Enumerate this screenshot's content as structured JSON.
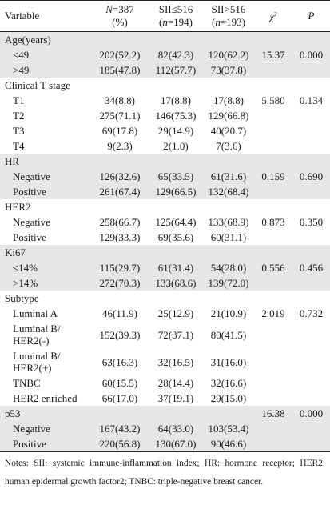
{
  "header": {
    "variable": "Variable",
    "n_total_italic": "N",
    "n_total_rest": "=387",
    "n_total_pct": "(%)",
    "sii_low": "SII≤516",
    "sii_low_n_italic": "n",
    "sii_low_n_rest": "=194)",
    "sii_high": "SII>516",
    "sii_high_n_italic": "n",
    "sii_high_n_rest": "=193)",
    "chi": "χ",
    "chi_sup": "2",
    "p": "P"
  },
  "groups": [
    {
      "label": "Age(years)",
      "shaded": true,
      "rows": [
        {
          "label": "≤49",
          "total": "202(52.2)",
          "low": "82(42.3)",
          "high": "120(62.2)",
          "chi": "15.37",
          "p": "0.000"
        },
        {
          "label": ">49",
          "total": "185(47.8)",
          "low": "112(57.7)",
          "high": "73(37.8)",
          "chi": "",
          "p": ""
        }
      ]
    },
    {
      "label": "Clinical T stage",
      "shaded": false,
      "rows": [
        {
          "label": "T1",
          "total": "34(8.8)",
          "low": "17(8.8)",
          "high": "17(8.8)",
          "chi": "5.580",
          "p": "0.134"
        },
        {
          "label": "T2",
          "total": "275(71.1)",
          "low": "146(75.3)",
          "high": "129(66.8)",
          "chi": "",
          "p": ""
        },
        {
          "label": "T3",
          "total": "69(17.8)",
          "low": "29(14.9)",
          "high": "40(20.7)",
          "chi": "",
          "p": ""
        },
        {
          "label": "T4",
          "total": "9(2.3)",
          "low": "2(1.0)",
          "high": "7(3.6)",
          "chi": "",
          "p": ""
        }
      ]
    },
    {
      "label": "HR",
      "shaded": true,
      "rows": [
        {
          "label": "Negative",
          "total": "126(32.6)",
          "low": "65(33.5)",
          "high": "61(31.6)",
          "chi": "0.159",
          "p": "0.690"
        },
        {
          "label": "Positive",
          "total": "261(67.4)",
          "low": "129(66.5)",
          "high": "132(68.4)",
          "chi": "",
          "p": ""
        }
      ]
    },
    {
      "label": "HER2",
      "shaded": false,
      "rows": [
        {
          "label": "Negative",
          "total": "258(66.7)",
          "low": "125(64.4)",
          "high": "133(68.9)",
          "chi": "0.873",
          "p": "0.350"
        },
        {
          "label": "Positive",
          "total": "129(33.3)",
          "low": "69(35.6)",
          "high": "60(31.1)",
          "chi": "",
          "p": ""
        }
      ]
    },
    {
      "label": "Ki67",
      "shaded": true,
      "rows": [
        {
          "label": "≤14%",
          "total": "115(29.7)",
          "low": "61(31.4)",
          "high": "54(28.0)",
          "chi": "0.556",
          "p": "0.456"
        },
        {
          "label": ">14%",
          "total": "272(70.3)",
          "low": "133(68.6)",
          "high": "139(72.0)",
          "chi": "",
          "p": ""
        }
      ]
    },
    {
      "label": "Subtype",
      "shaded": false,
      "rows": [
        {
          "label": "Luminal A",
          "total": "46(11.9)",
          "low": "25(12.9)",
          "high": "21(10.9)",
          "chi": "2.019",
          "p": "0.732"
        },
        {
          "label": "Luminal B/",
          "label2": "HER2(-)",
          "total": "152(39.3)",
          "low": "72(37.1)",
          "high": "80(41.5)",
          "chi": "",
          "p": ""
        },
        {
          "label": "Luminal B/",
          "label2": "HER2(+)",
          "total": "63(16.3)",
          "low": "32(16.5)",
          "high": "31(16.0)",
          "chi": "",
          "p": ""
        },
        {
          "label": "TNBC",
          "total": "60(15.5)",
          "low": "28(14.4)",
          "high": "32(16.6)",
          "chi": "",
          "p": ""
        },
        {
          "label": "HER2 enriched",
          "total": "66(17.0)",
          "low": "37(19.1)",
          "high": "29(15.0)",
          "chi": "",
          "p": ""
        }
      ]
    },
    {
      "label": "p53",
      "shaded": true,
      "chi": "16.38",
      "p": "0.000",
      "rows": [
        {
          "label": "Negative",
          "total": "167(43.2)",
          "low": "64(33.0)",
          "high": "103(53.4)",
          "chi": "",
          "p": ""
        },
        {
          "label": "Positive",
          "total": "220(56.8)",
          "low": "130(67.0)",
          "high": "90(46.6)",
          "chi": "",
          "p": ""
        }
      ]
    }
  ],
  "notes": "Notes: SII: systemic immune-inflammation index; HR: hormone receptor; HER2: human epidermal growth factor2; TNBC: triple-negative breast cancer."
}
